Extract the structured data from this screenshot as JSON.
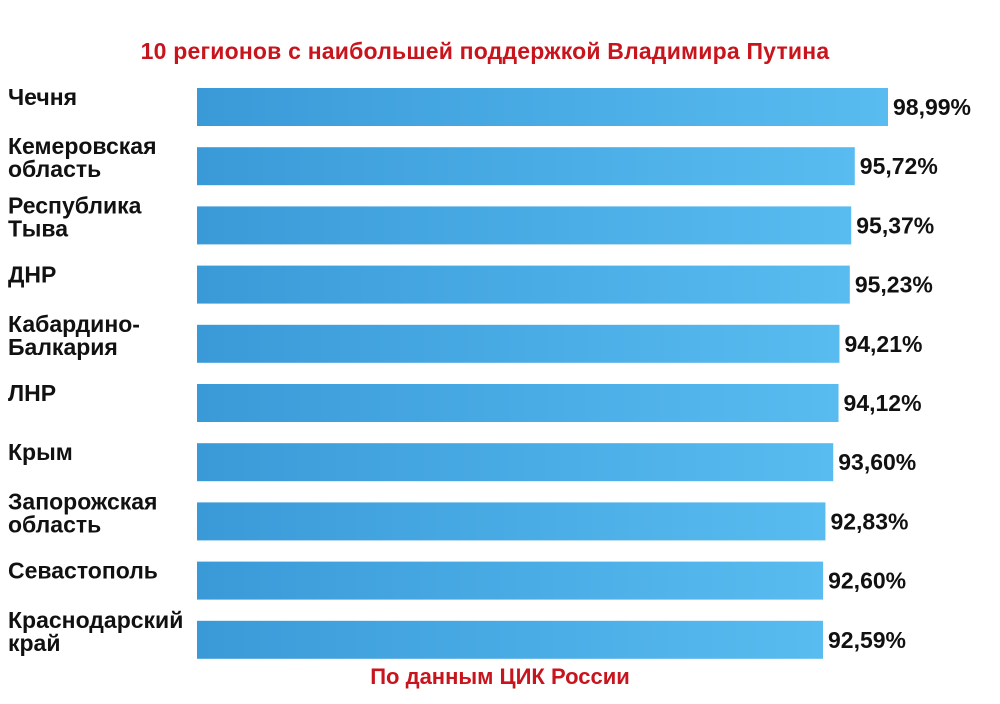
{
  "chart_data": {
    "type": "bar",
    "orientation": "horizontal",
    "title": "10 регионов с наибольшей поддержкой Владимира Путина",
    "source": "По данным ЦИК России",
    "categories": [
      [
        "Чечня"
      ],
      [
        "Кемеровская",
        "область"
      ],
      [
        "Республика",
        "Тыва"
      ],
      [
        "ДНР"
      ],
      [
        "Кабардино-",
        "Балкария"
      ],
      [
        "ЛНР"
      ],
      [
        "Крым"
      ],
      [
        "Запорожская",
        "область"
      ],
      [
        "Севастополь"
      ],
      [
        "Краснодарский",
        "край"
      ]
    ],
    "values": [
      98.99,
      95.72,
      95.37,
      95.23,
      94.21,
      94.12,
      93.6,
      92.83,
      92.6,
      92.59
    ],
    "value_labels": [
      "98,99%",
      "95,72%",
      "95,37%",
      "95,23%",
      "94,21%",
      "94,12%",
      "93,60%",
      "92,83%",
      "92,60%",
      "92,59%"
    ],
    "xlim": [
      0,
      100
    ],
    "grid": false,
    "legend": "none",
    "bar_color": "#4aaee6",
    "bar_gradient_light": "#58bcf0",
    "bar_gradient_dark": "#3a9ad8",
    "title_color": "#c8141c",
    "source_color": "#c8141c"
  }
}
